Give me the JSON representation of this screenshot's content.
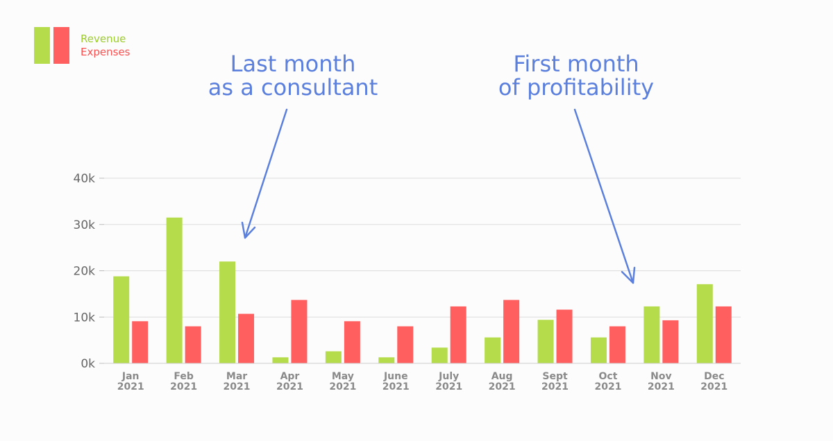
{
  "colors": {
    "revenue": "#b5dc4a",
    "expenses": "#ff5f5f",
    "annotation": "#5b7fdc",
    "grid": "#dcdcdc",
    "tick": "#666666",
    "month_label": "#8a8a8a"
  },
  "legend": {
    "placement": "top-left",
    "items": [
      {
        "label": "Revenue",
        "color": "#9ccc2c"
      },
      {
        "label": "Expenses",
        "color": "#ff4f4f"
      }
    ]
  },
  "annotations": [
    {
      "lines": [
        "Last month",
        "as a consultant"
      ],
      "points_to": "Mar 2021",
      "icon": "arrow-icon"
    },
    {
      "lines": [
        "First month",
        "of profitability"
      ],
      "points_to": "Nov 2021",
      "icon": "arrow-icon"
    }
  ],
  "chart_data": {
    "type": "bar",
    "title": "",
    "xlabel": "",
    "ylabel": "",
    "categories": [
      [
        "Jan",
        "2021"
      ],
      [
        "Feb",
        "2021"
      ],
      [
        "Mar",
        "2021"
      ],
      [
        "Apr",
        "2021"
      ],
      [
        "May",
        "2021"
      ],
      [
        "June",
        "2021"
      ],
      [
        "July",
        "2021"
      ],
      [
        "Aug",
        "2021"
      ],
      [
        "Sept",
        "2021"
      ],
      [
        "Oct",
        "2021"
      ],
      [
        "Nov",
        "2021"
      ],
      [
        "Dec",
        "2021"
      ]
    ],
    "series": [
      {
        "name": "Revenue",
        "values": [
          18800,
          31500,
          22000,
          1300,
          2600,
          1300,
          3400,
          5600,
          9400,
          5600,
          12300,
          17100
        ]
      },
      {
        "name": "Expenses",
        "values": [
          9100,
          8000,
          10700,
          13700,
          9100,
          8000,
          12300,
          13700,
          11600,
          8000,
          9300,
          12300
        ]
      }
    ],
    "ylim": [
      0,
      40000
    ],
    "yticks": [
      {
        "value": 0,
        "label": "0k"
      },
      {
        "value": 10000,
        "label": "10k"
      },
      {
        "value": 20000,
        "label": "20k"
      },
      {
        "value": 30000,
        "label": "30k"
      },
      {
        "value": 40000,
        "label": "40k"
      }
    ],
    "grid": true
  }
}
